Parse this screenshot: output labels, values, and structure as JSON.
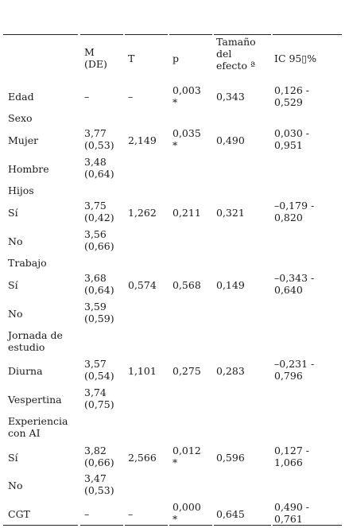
{
  "table": {
    "headers": [
      "",
      "M\n(DE)",
      "T",
      "p",
      "Tamaño\ndel\nefecto ª",
      "IC 95▯%"
    ],
    "rows": [
      {
        "label": "Edad",
        "m": "–",
        "t": "–",
        "p": "0,003\n*",
        "efecto": "0,343",
        "ic": "0,126 -\n0,529"
      },
      {
        "label": "Sexo",
        "m": "",
        "t": "",
        "p": "",
        "efecto": "",
        "ic": ""
      },
      {
        "label": " Mujer",
        "m": "3,77\n(0,53)",
        "t": "2,149",
        "p": "0,035\n*",
        "efecto": "0,490",
        "ic": " 0,030 -\n0,951"
      },
      {
        "label": " Hombre",
        "m": "3,48\n(0,64)",
        "t": "",
        "p": "",
        "efecto": "",
        "ic": ""
      },
      {
        "label": "Hijos",
        "m": "",
        "t": "",
        "p": "",
        "efecto": "",
        "ic": ""
      },
      {
        "label": "  Sí",
        "m": "3,75\n(0,42)",
        "t": "1,262",
        "p": "0,211",
        "efecto": "0,321",
        "ic": "–0,179 -\n0,820"
      },
      {
        "label": "  No",
        "m": "3,56\n(0,66)",
        "t": "",
        "p": "",
        "efecto": "",
        "ic": ""
      },
      {
        "label": "Trabajo",
        "m": "",
        "t": "",
        "p": "",
        "efecto": "",
        "ic": ""
      },
      {
        "label": "  Sí",
        "m": "3,68\n(0,64)",
        "t": "0,574",
        "p": "0,568",
        "efecto": "0,149",
        "ic": "–0,343 -\n0,640"
      },
      {
        "label": "  No",
        "m": "3,59\n(0,59)",
        "t": "",
        "p": "",
        "efecto": "",
        "ic": ""
      },
      {
        "label": "Jornada de\nestudio",
        "m": "",
        "t": "",
        "p": "",
        "efecto": "",
        "ic": ""
      },
      {
        "label": "  Diurna",
        "m": "3,57\n(0,54)",
        "t": "1,101",
        "p": "0,275",
        "efecto": "0,283",
        "ic": "–0,231 -\n0,796"
      },
      {
        "label": "  Vespertina",
        "m": "3,74\n(0,75)",
        "t": "",
        "p": "",
        "efecto": "",
        "ic": ""
      },
      {
        "label": "Experiencia\ncon AI",
        "m": "",
        "t": "",
        "p": "",
        "efecto": "",
        "ic": ""
      },
      {
        "label": "  Sí",
        "m": "3,82\n(0,66)",
        "t": "2,566",
        "p": "0,012\n*",
        "efecto": "0,596",
        "ic": " 0,127 -\n1,066"
      },
      {
        "label": "  No",
        "m": "3,47\n(0,53)",
        "t": "",
        "p": "",
        "efecto": "",
        "ic": ""
      },
      {
        "label": "CGT",
        "m": "–",
        "t": "–",
        "p": "0,000\n*",
        "efecto": "0,645",
        "ic": " 0,490 -\n0,761"
      }
    ]
  }
}
